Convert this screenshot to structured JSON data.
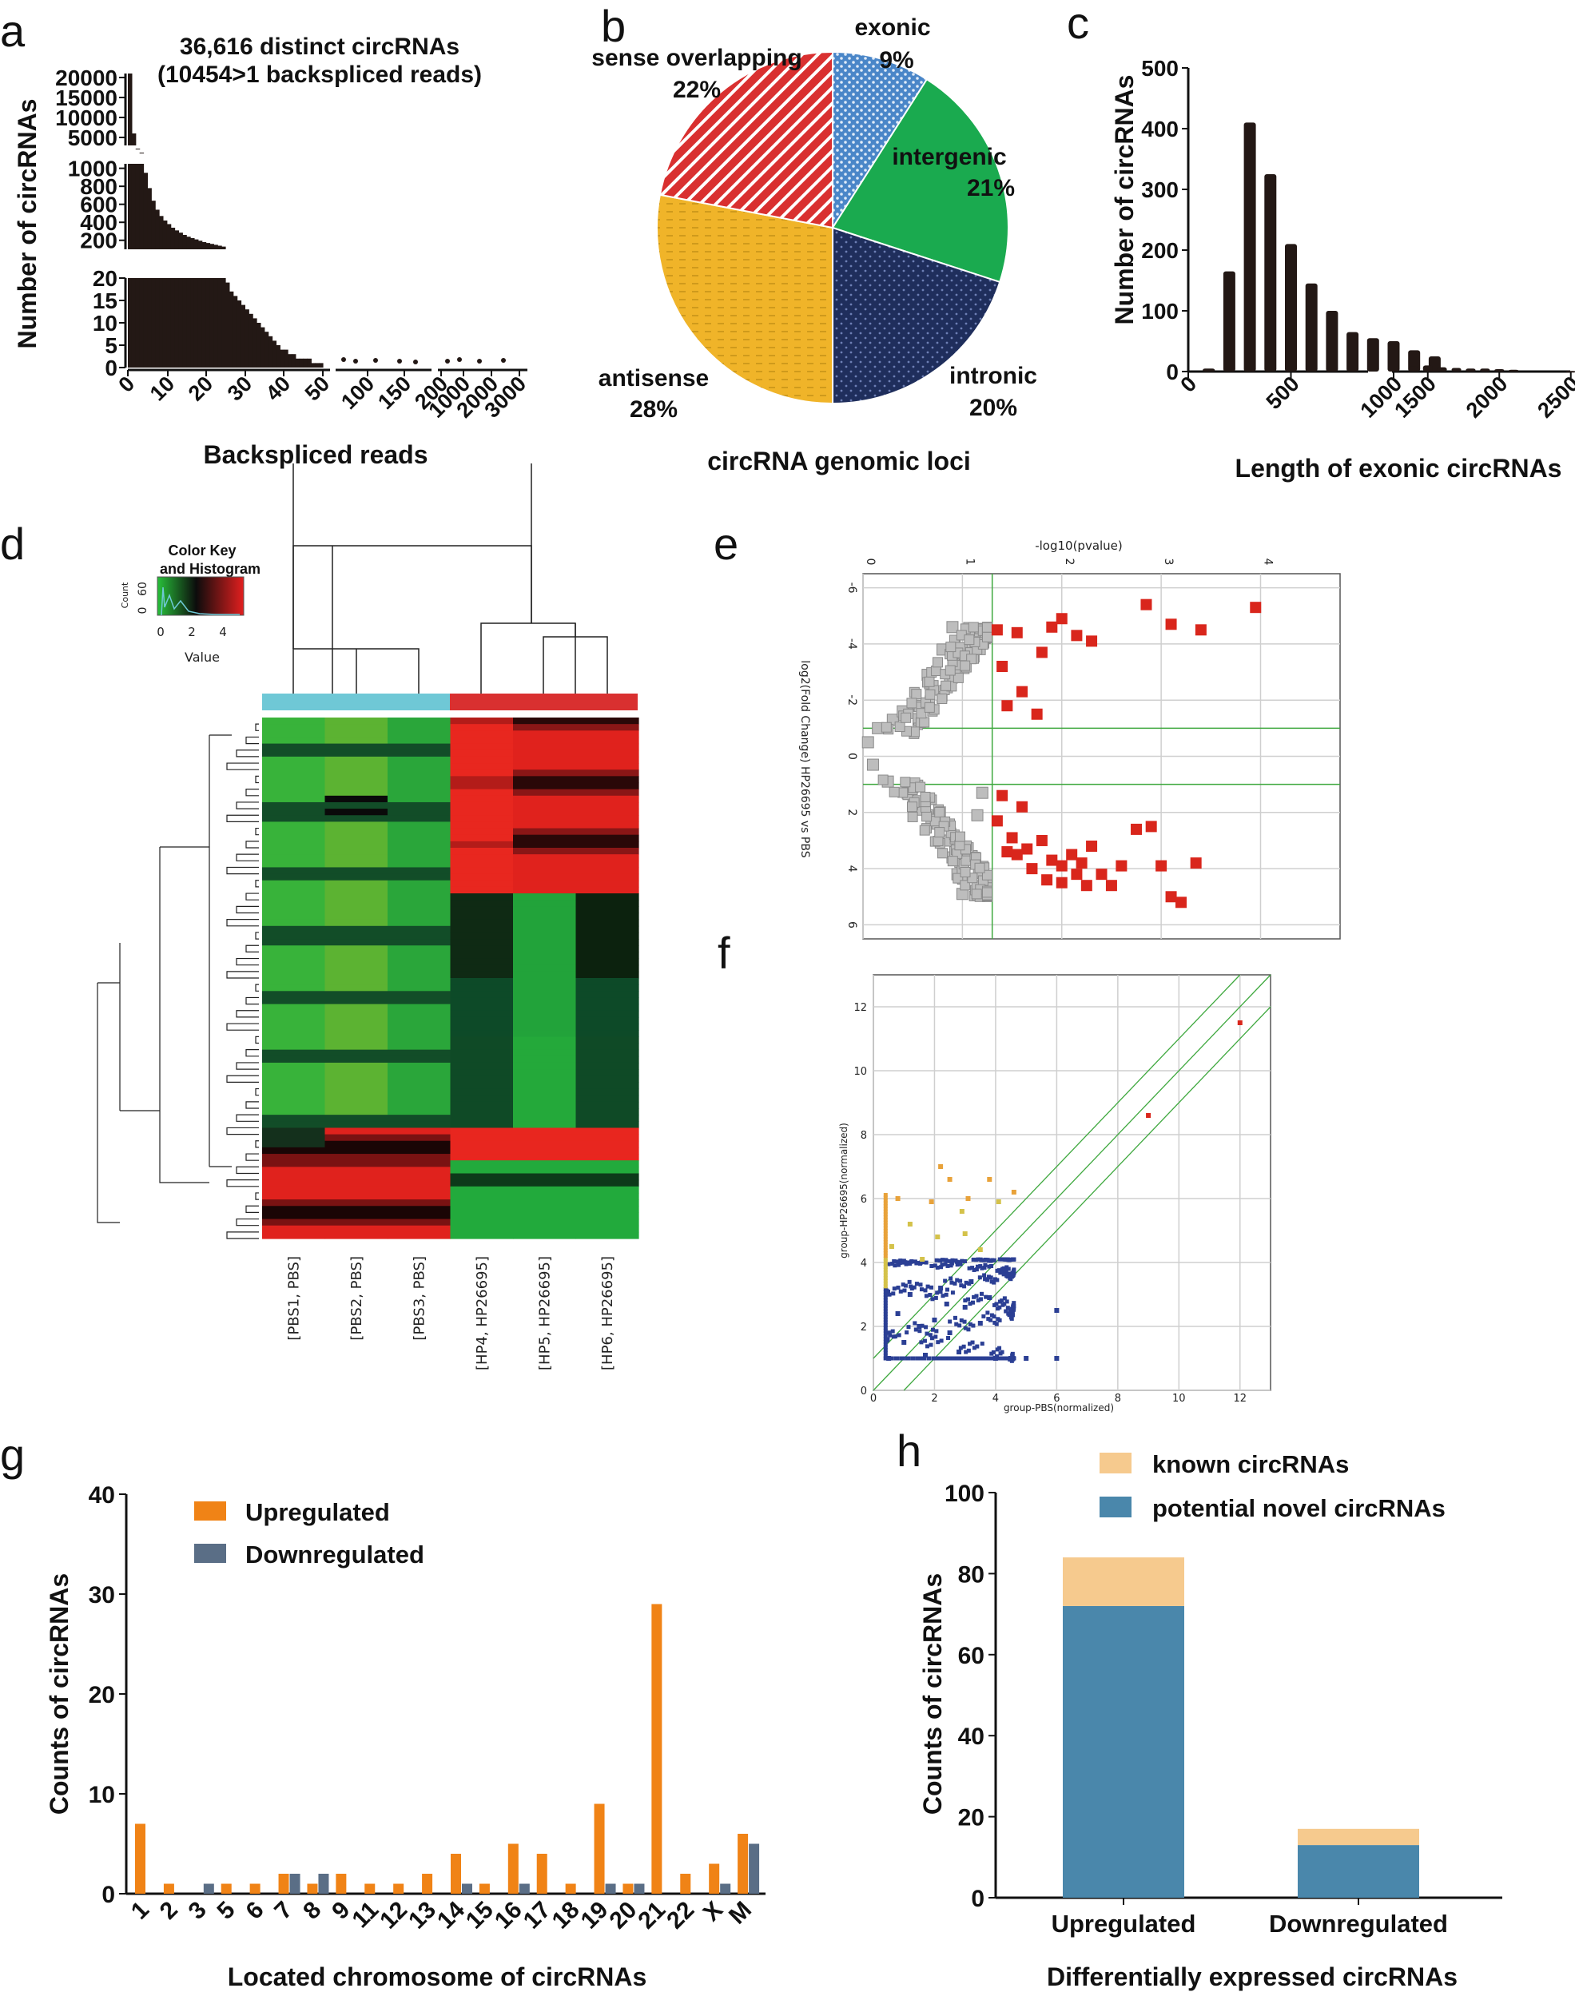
{
  "panel_labels": [
    "a",
    "b",
    "c",
    "d",
    "e",
    "f",
    "g",
    "h"
  ],
  "chart_data": [
    {
      "panel": "a",
      "type": "bar",
      "title": "36,616 distinct circRNAs",
      "subtitle": "(10454>1 backspliced reads)",
      "xlabel": "Backspliced reads",
      "ylabel": "Number of circRNAs",
      "xticks": [
        "0",
        "10",
        "20",
        "30",
        "40",
        "50",
        "100",
        "150",
        "200",
        "1000",
        "2000",
        "3000"
      ],
      "y_segments": [
        {
          "ticks": [
            "0",
            "5",
            "10",
            "15",
            "20"
          ],
          "ylim": [
            0,
            20
          ]
        },
        {
          "ticks": [
            "200",
            "400",
            "600",
            "800",
            "1000"
          ],
          "ylim": [
            100,
            1050
          ]
        },
        {
          "ticks": [
            "5000",
            "10000",
            "15000",
            "20000"
          ],
          "ylim": [
            3000,
            21000
          ]
        }
      ],
      "x": [
        1,
        2,
        3,
        4,
        5,
        6,
        7,
        8,
        9,
        10,
        11,
        12,
        13,
        14,
        15,
        16,
        17,
        18,
        19,
        20,
        21,
        22,
        23,
        24,
        25,
        26,
        27,
        28,
        29,
        30,
        31,
        32,
        33,
        34,
        35,
        36,
        37,
        38,
        39,
        40,
        41,
        42,
        43,
        44,
        45,
        46,
        47,
        48,
        49,
        50
      ],
      "values": [
        21000,
        6000,
        2200,
        1200,
        950,
        780,
        640,
        540,
        470,
        420,
        380,
        340,
        310,
        285,
        260,
        240,
        225,
        210,
        195,
        180,
        170,
        160,
        150,
        140,
        130,
        19,
        17,
        16,
        15,
        14,
        13,
        12,
        11,
        10,
        9,
        8,
        7,
        6,
        5,
        4,
        4,
        3,
        3,
        2,
        2,
        2,
        2,
        1,
        1,
        1
      ]
    },
    {
      "panel": "b",
      "type": "pie",
      "xlabel": "circRNA genomic loci",
      "slices": [
        {
          "label": "exonic",
          "pct_label": "9%",
          "value": 9,
          "color": "#4a86c8"
        },
        {
          "label": "intergenic",
          "pct_label": "21%",
          "value": 21,
          "color": "#1aaa4f"
        },
        {
          "label": "intronic",
          "pct_label": "20%",
          "value": 20,
          "color": "#1f2e5c"
        },
        {
          "label": "antisense",
          "pct_label": "28%",
          "value": 28,
          "color": "#f0b429"
        },
        {
          "label": "sense overlapping",
          "pct_label": "22%",
          "value": 22,
          "color": "#d93030"
        }
      ]
    },
    {
      "panel": "c",
      "type": "bar",
      "xlabel": "Length of exonic circRNAs",
      "ylabel": "Number of circRNAs",
      "yticks": [
        "0",
        "100",
        "200",
        "300",
        "400",
        "500"
      ],
      "ylim": [
        0,
        500
      ],
      "xticks": [
        "0",
        "500",
        "1000",
        "1500",
        "2000",
        "2500"
      ],
      "x": [
        100,
        200,
        300,
        400,
        500,
        600,
        700,
        800,
        900,
        1000,
        1100,
        1200,
        1400,
        1500,
        1600,
        1700,
        1800,
        1900,
        2000,
        2100,
        2500
      ],
      "values": [
        5,
        165,
        410,
        325,
        210,
        145,
        100,
        65,
        55,
        50,
        35,
        25,
        8,
        10,
        7,
        6,
        5,
        5,
        4,
        3,
        1
      ]
    },
    {
      "panel": "d",
      "type": "heatmap",
      "key_title": "Color Key",
      "key_subtitle": "and Histogram",
      "key_ylabel": "Count",
      "key_yticks": [
        "0",
        "60"
      ],
      "key_xticks": [
        "0",
        "2",
        "4"
      ],
      "key_xlabel": "Value",
      "columns": [
        "[PBS1, PBS]",
        "[PBS2, PBS]",
        "[PBS3, PBS]",
        "[HP4, HP26695]",
        "[HP5, HP26695]",
        "[HP6, HP26695]"
      ],
      "group_colors": [
        "#6fc8d6",
        "#d93030"
      ]
    },
    {
      "panel": "e",
      "type": "scatter",
      "xlabel": "-log10(pvalue)",
      "ylabel": "log2(Fold Change) HP26695 vs PBS",
      "xticks": [
        "0",
        "1",
        "2",
        "3",
        "4"
      ],
      "yticks": [
        "-6",
        "-4",
        "-2",
        "0",
        "2",
        "4",
        "6"
      ],
      "xlim": [
        0,
        4.8
      ],
      "ylim": [
        -6.5,
        6.5
      ],
      "threshold_x": 1.3,
      "threshold_y": [
        -1,
        1
      ],
      "series": [
        {
          "color": "#d9261c",
          "points": [
            [
              1.35,
              -4.5
            ],
            [
              1.55,
              -4.4
            ],
            [
              1.9,
              -4.6
            ],
            [
              2.0,
              -4.9
            ],
            [
              2.15,
              -4.3
            ],
            [
              2.3,
              -4.1
            ],
            [
              2.85,
              -5.4
            ],
            [
              3.1,
              -4.7
            ],
            [
              3.4,
              -4.5
            ],
            [
              3.95,
              -5.3
            ],
            [
              1.4,
              -3.2
            ],
            [
              1.8,
              -3.7
            ],
            [
              1.6,
              -2.3
            ],
            [
              1.45,
              -1.8
            ],
            [
              1.75,
              -1.5
            ],
            [
              1.4,
              1.4
            ],
            [
              1.6,
              1.8
            ],
            [
              1.35,
              2.3
            ],
            [
              1.5,
              2.9
            ],
            [
              1.65,
              3.3
            ],
            [
              1.8,
              3.0
            ],
            [
              1.9,
              3.7
            ],
            [
              2.0,
              3.9
            ],
            [
              2.1,
              3.5
            ],
            [
              2.2,
              3.8
            ],
            [
              2.3,
              3.2
            ],
            [
              2.4,
              4.2
            ],
            [
              2.0,
              4.5
            ],
            [
              2.25,
              4.6
            ],
            [
              1.7,
              4.0
            ],
            [
              1.55,
              3.5
            ],
            [
              2.6,
              3.9
            ],
            [
              2.75,
              2.6
            ],
            [
              2.9,
              2.5
            ],
            [
              3.0,
              3.9
            ],
            [
              3.1,
              5.0
            ],
            [
              3.2,
              5.2
            ],
            [
              3.35,
              3.8
            ],
            [
              2.5,
              4.6
            ],
            [
              1.85,
              4.4
            ],
            [
              2.15,
              4.2
            ],
            [
              1.45,
              3.4
            ]
          ]
        },
        {
          "color": "#bdbdbd",
          "points": [
            [
              0.9,
              -4.6
            ],
            [
              0.8,
              -3.8
            ],
            [
              0.95,
              -3.2
            ],
            [
              0.7,
              -2.5
            ],
            [
              0.5,
              -1.8
            ],
            [
              0.3,
              -1.3
            ],
            [
              0.15,
              -1.0
            ],
            [
              0.05,
              -0.5
            ],
            [
              0.1,
              0.3
            ],
            [
              0.25,
              0.9
            ],
            [
              0.45,
              1.3
            ],
            [
              0.6,
              1.9
            ],
            [
              0.75,
              2.4
            ],
            [
              0.85,
              3.0
            ],
            [
              0.9,
              3.6
            ],
            [
              0.95,
              4.2
            ],
            [
              1.0,
              4.9
            ],
            [
              1.1,
              -3.9
            ],
            [
              1.15,
              2.1
            ],
            [
              1.2,
              1.3
            ],
            [
              0.65,
              -2.9
            ],
            [
              0.4,
              -1.6
            ],
            [
              0.55,
              1.6
            ]
          ]
        }
      ]
    },
    {
      "panel": "f",
      "type": "scatter",
      "xlabel": "group-PBS(normalized)",
      "ylabel": "group-HP26695(normalized)",
      "xticks": [
        "0",
        "2",
        "4",
        "6",
        "8",
        "10",
        "12"
      ],
      "yticks": [
        "0",
        "2",
        "4",
        "6",
        "8",
        "10",
        "12"
      ],
      "xlim": [
        0,
        13
      ],
      "ylim": [
        0,
        13
      ],
      "series": [
        {
          "color": "#2b3f94",
          "points": [
            [
              0.5,
              1
            ],
            [
              1,
              1.5
            ],
            [
              1.5,
              2
            ],
            [
              2,
              2.2
            ],
            [
              2.5,
              1.8
            ],
            [
              3,
              2.6
            ],
            [
              3.5,
              2.1
            ],
            [
              4,
              1
            ],
            [
              4.5,
              1
            ],
            [
              5,
              1
            ],
            [
              6,
              1
            ],
            [
              1.2,
              3
            ],
            [
              2.2,
              3.2
            ],
            [
              3.2,
              3.4
            ],
            [
              0.8,
              2.4
            ],
            [
              2.8,
              1.2
            ],
            [
              6,
              2.5
            ],
            [
              1.7,
              1.1
            ],
            [
              3.8,
              2.9
            ],
            [
              2.4,
              2.7
            ]
          ]
        },
        {
          "color": "#d4c24a",
          "points": [
            [
              0.6,
              4.5
            ],
            [
              1.2,
              5.2
            ],
            [
              2.1,
              4.8
            ],
            [
              2.9,
              5.6
            ],
            [
              3.5,
              4.4
            ],
            [
              4.1,
              5.9
            ],
            [
              1.6,
              4.1
            ],
            [
              3.0,
              4.9
            ]
          ]
        },
        {
          "color": "#e8a23a",
          "points": [
            [
              2.5,
              6.6
            ],
            [
              3.1,
              6.0
            ],
            [
              4.6,
              6.2
            ],
            [
              0.8,
              6.0
            ],
            [
              1.9,
              5.9
            ],
            [
              3.8,
              6.6
            ],
            [
              2.2,
              7.0
            ]
          ]
        },
        {
          "color": "#d9261c",
          "points": [
            [
              9,
              8.6
            ],
            [
              12,
              11.5
            ]
          ]
        }
      ]
    },
    {
      "panel": "g",
      "type": "bar",
      "xlabel": "Located chromosome of circRNAs",
      "ylabel": "Counts of circRNAs",
      "ylim": [
        0,
        40
      ],
      "yticks": [
        "0",
        "10",
        "20",
        "30",
        "40"
      ],
      "categories": [
        "1",
        "2",
        "3",
        "5",
        "6",
        "7",
        "8",
        "9",
        "11",
        "12",
        "13",
        "14",
        "15",
        "16",
        "17",
        "18",
        "19",
        "20",
        "21",
        "22",
        "X",
        "M"
      ],
      "series": [
        {
          "name": "Upregulated",
          "color": "#f08316",
          "values": [
            7,
            1,
            0,
            1,
            1,
            2,
            1,
            2,
            1,
            1,
            2,
            4,
            1,
            5,
            4,
            1,
            9,
            1,
            29,
            2,
            3,
            6
          ]
        },
        {
          "name": "Downregulated",
          "color": "#5a6e86",
          "values": [
            0,
            0,
            1,
            0,
            0,
            2,
            2,
            0,
            0,
            0,
            0,
            1,
            0,
            1,
            0,
            0,
            1,
            1,
            0,
            0,
            1,
            5
          ]
        }
      ]
    },
    {
      "panel": "h",
      "type": "bar",
      "stacked": true,
      "xlabel": "Differentially expressed circRNAs",
      "ylabel": "Counts of circRNAs",
      "ylim": [
        0,
        100
      ],
      "yticks": [
        "0",
        "20",
        "40",
        "60",
        "80",
        "100"
      ],
      "categories": [
        "Upregulated",
        "Downregulated"
      ],
      "series": [
        {
          "name": "potential novel circRNAs",
          "color": "#4a87ab",
          "values": [
            72,
            13
          ]
        },
        {
          "name": "known circRNAs",
          "color": "#f6ca8e",
          "values": [
            12,
            4
          ]
        }
      ]
    }
  ]
}
